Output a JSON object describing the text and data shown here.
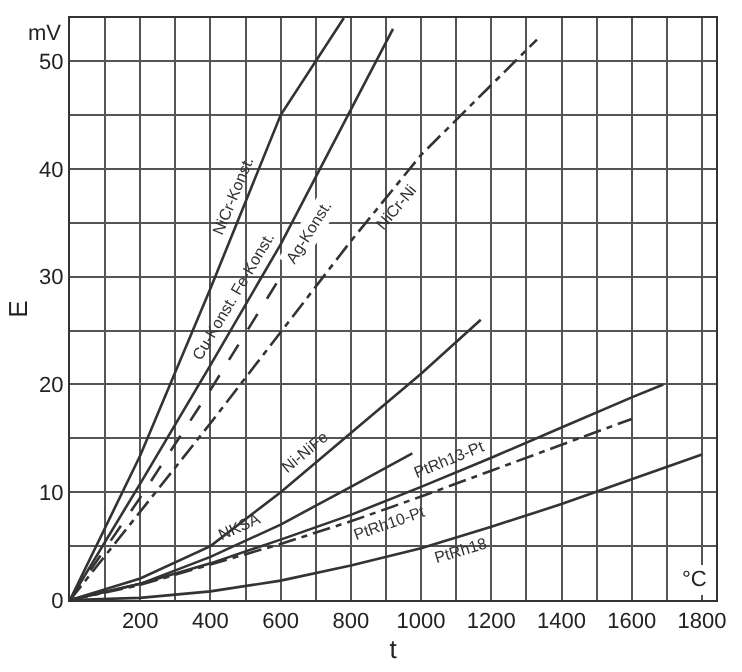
{
  "chart_data": {
    "type": "line",
    "xlabel": "t",
    "ylabel": "E",
    "annotations": [
      "mV",
      "°C"
    ],
    "xlim": [
      0,
      1840
    ],
    "ylim": [
      0,
      54
    ],
    "xticks": [
      {
        "value": 0,
        "label": null
      },
      {
        "value": 100,
        "label": null
      },
      200,
      {
        "value": 300,
        "label": null
      },
      400,
      {
        "value": 500,
        "label": null
      },
      600,
      {
        "value": 700,
        "label": null
      },
      800,
      {
        "value": 900,
        "label": null
      },
      1000,
      {
        "value": 1100,
        "label": null
      },
      1200,
      {
        "value": 1300,
        "label": null
      },
      1400,
      {
        "value": 1500,
        "label": null
      },
      1600,
      {
        "value": 1700,
        "label": null
      },
      1800
    ],
    "yticks": [
      0,
      {
        "value": 5,
        "label": null
      },
      10,
      {
        "value": 15,
        "label": null
      },
      20,
      {
        "value": 25,
        "label": null
      },
      30,
      {
        "value": 35,
        "label": null
      },
      40,
      {
        "value": 45,
        "label": null
      },
      50
    ],
    "grid": true,
    "marker": "none",
    "series": [
      {
        "name": "NiCr-Konst.",
        "color": "#333333",
        "line_style": "solid",
        "x": [
          0,
          200,
          400,
          600,
          780
        ],
        "values": [
          0,
          13.4,
          28.9,
          45,
          54
        ]
      },
      {
        "name": "Cu-Konst. Fe-Konst.",
        "color": "#333333",
        "line_style": "solid",
        "x": [
          0,
          200,
          400,
          600,
          800,
          920
        ],
        "values": [
          0,
          10.8,
          21.8,
          33,
          45.5,
          53
        ]
      },
      {
        "name": "Ag-Konst.",
        "color": "#333333",
        "line_style": "dashed",
        "x": [
          0,
          200,
          400,
          600
        ],
        "values": [
          0,
          9.5,
          19.5,
          30
        ]
      },
      {
        "name": "NiCr-Ni",
        "color": "#333333",
        "line_style": "dashdot",
        "x": [
          0,
          400,
          800,
          1000,
          1330
        ],
        "values": [
          0,
          16.4,
          33.3,
          41.3,
          52
        ]
      },
      {
        "name": "Ni-NiFe",
        "color": "#333333",
        "line_style": "solid",
        "x": [
          0,
          200,
          400,
          600,
          800,
          1000,
          1170
        ],
        "values": [
          0,
          2,
          5,
          10,
          15.5,
          21,
          26
        ]
      },
      {
        "name": "NKSA",
        "color": "#333333",
        "line_style": "solid",
        "x": [
          0,
          200,
          400,
          600,
          800,
          975
        ],
        "values": [
          0,
          1.5,
          4,
          7,
          10.5,
          13.6
        ]
      },
      {
        "name": "PtRh13-Pt",
        "color": "#333333",
        "line_style": "solid",
        "x": [
          0,
          200,
          400,
          600,
          800,
          1000,
          1200,
          1400,
          1600,
          1690
        ],
        "values": [
          0,
          1.5,
          3.4,
          5.6,
          7.9,
          10.5,
          13.2,
          16,
          18.8,
          20
        ]
      },
      {
        "name": "PtRh10-Pt",
        "color": "#333333",
        "line_style": "dashdot",
        "x": [
          0,
          200,
          400,
          600,
          800,
          1000,
          1200,
          1400,
          1600
        ],
        "values": [
          0,
          1.4,
          3.3,
          5.2,
          7.3,
          9.6,
          12,
          14.4,
          16.8
        ]
      },
      {
        "name": "PtRh18",
        "color": "#333333",
        "line_style": "solid",
        "x": [
          0,
          200,
          400,
          600,
          800,
          1000,
          1200,
          1400,
          1600,
          1800
        ],
        "values": [
          0,
          0.2,
          0.8,
          1.8,
          3.2,
          4.8,
          6.8,
          8.9,
          11.2,
          13.5
        ]
      }
    ]
  }
}
